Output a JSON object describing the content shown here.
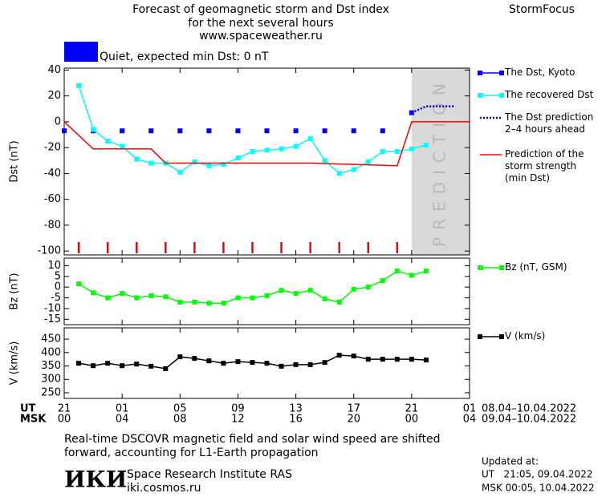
{
  "header": {
    "title": [
      "Forecast of geomagnetic storm and Dst index",
      "for the next several hours",
      "www.spaceweather.ru"
    ],
    "brand": "StormFocus"
  },
  "status": {
    "text": "Quiet, expected min Dst: 0 nT",
    "color": "#0000ff"
  },
  "chart_data": [
    {
      "type": "line",
      "ylabel": "Dst (nT)",
      "xlim": [
        0,
        28
      ],
      "xticks": [
        0,
        4,
        8,
        12,
        16,
        20,
        24,
        28
      ],
      "ylim": [
        -103,
        41.5
      ],
      "yticks": [
        40,
        20,
        0,
        -20,
        -40,
        -60,
        -80,
        -100
      ],
      "prediction_start": 24,
      "prediction_label": "PREDICTION",
      "markers_x": [
        1,
        3,
        5,
        7,
        9,
        11,
        13,
        15,
        17,
        19,
        21,
        23
      ],
      "markers_color": "#ff0000",
      "series": [
        {
          "name": "The Dst, Kyoto",
          "color": "#0000ff",
          "style": "markers",
          "x": [
            0,
            2,
            4,
            6,
            8,
            10,
            12,
            14,
            16,
            18,
            20,
            22,
            24
          ],
          "values": [
            -7,
            -7,
            -7,
            -7,
            -7,
            -7,
            -7,
            -7,
            -7,
            -7,
            -7,
            -7,
            7
          ]
        },
        {
          "name": "The recovered Dst",
          "color": "#00ffff",
          "style": "line+markers",
          "x": [
            1,
            2,
            3,
            4,
            5,
            6,
            7,
            8,
            9,
            10,
            11,
            12,
            13,
            14,
            15,
            16,
            17,
            18,
            19,
            20,
            21,
            22,
            23,
            24,
            25
          ],
          "values": [
            28,
            -6,
            -15,
            -19,
            -29,
            -32,
            -32,
            -39,
            -31,
            -34,
            -33,
            -28,
            -23,
            -22,
            -21,
            -19,
            -13,
            -30,
            -40,
            -37,
            -31,
            -23,
            -23,
            -21,
            -18
          ]
        },
        {
          "name": "The Dst prediction\n2–4 hours ahead",
          "color": "#0000cc",
          "style": "dotted",
          "x": [
            24,
            25,
            27
          ],
          "values": [
            7,
            12,
            12
          ]
        },
        {
          "name": "Prediction of the\nstorm strength\n(min Dst)",
          "color": "#ff0000",
          "style": "line",
          "x": [
            0,
            2,
            6,
            7,
            17,
            23,
            24,
            28
          ],
          "values": [
            0,
            -21,
            -21,
            -32,
            -32,
            -34,
            0,
            0
          ]
        }
      ]
    },
    {
      "type": "line",
      "ylabel": "Bz (nT)",
      "xlim": [
        0,
        28
      ],
      "xticks": [
        0,
        4,
        8,
        12,
        16,
        20,
        24,
        28
      ],
      "ylim": [
        -17.5,
        13.5
      ],
      "yticks": [
        10,
        5,
        0,
        -5,
        -10,
        -15
      ],
      "series": [
        {
          "name": "Bz (nT, GSM)",
          "color": "#00ff00",
          "style": "line+markers",
          "x": [
            1,
            2,
            3,
            4,
            5,
            6,
            7,
            8,
            9,
            10,
            11,
            12,
            13,
            14,
            15,
            16,
            17,
            18,
            19,
            20,
            21,
            22,
            23,
            24,
            25
          ],
          "values": [
            1.5,
            -2.7,
            -5,
            -3,
            -5,
            -4,
            -4.5,
            -7,
            -7,
            -7.5,
            -7.5,
            -5,
            -5,
            -4,
            -1.5,
            -3,
            -1.5,
            -5.5,
            -7,
            -1,
            0,
            3,
            7.5,
            5.5,
            7.5
          ]
        }
      ]
    },
    {
      "type": "line",
      "ylabel": "V (km/s)",
      "xlim": [
        0,
        28
      ],
      "xticks": [
        {
          "value": 0,
          "label": "21"
        },
        {
          "value": 4,
          "label": "01"
        },
        {
          "value": 8,
          "label": "05"
        },
        {
          "value": 12,
          "label": "09"
        },
        {
          "value": 16,
          "label": "13"
        },
        {
          "value": 20,
          "label": "17"
        },
        {
          "value": 24,
          "label": "21"
        },
        {
          "value": 28,
          "label": "01"
        }
      ],
      "xticks_msk": [
        "00",
        "04",
        "08",
        "12",
        "16",
        "20",
        "00",
        "04"
      ],
      "ut_label": "UT",
      "msk_label": "MSK",
      "ut_range": "08.04–10.04.2022",
      "msk_range": "09.04–10.04.2022",
      "ylim": [
        229,
        492
      ],
      "yticks": [
        450,
        400,
        350,
        300,
        250
      ],
      "series": [
        {
          "name": "V (km/s)",
          "color": "#000000",
          "style": "line+markers",
          "x": [
            1,
            2,
            3,
            4,
            5,
            6,
            7,
            8,
            9,
            10,
            11,
            12,
            13,
            14,
            15,
            16,
            17,
            18,
            19,
            20,
            21,
            22,
            23,
            24,
            25
          ],
          "values": [
            360,
            351,
            360,
            351,
            357,
            349,
            340,
            384,
            378,
            369,
            360,
            366,
            363,
            360,
            349,
            355,
            355,
            363,
            390,
            387,
            375,
            375,
            375,
            375,
            372
          ]
        }
      ]
    }
  ],
  "footer": {
    "note": "Real-time DSCOVR magnetic field and solar wind speed are shifted\nforward, accounting for L1-Earth propagation",
    "logo": "ИКИ",
    "institute": "Space Research Institute RAS",
    "site": "iki.cosmos.ru",
    "updated_title": "Updated at:",
    "updated_ut": "UT   21:05, 09.04.2022",
    "updated_msk": "MSK 00:05, 10.04.2022"
  }
}
